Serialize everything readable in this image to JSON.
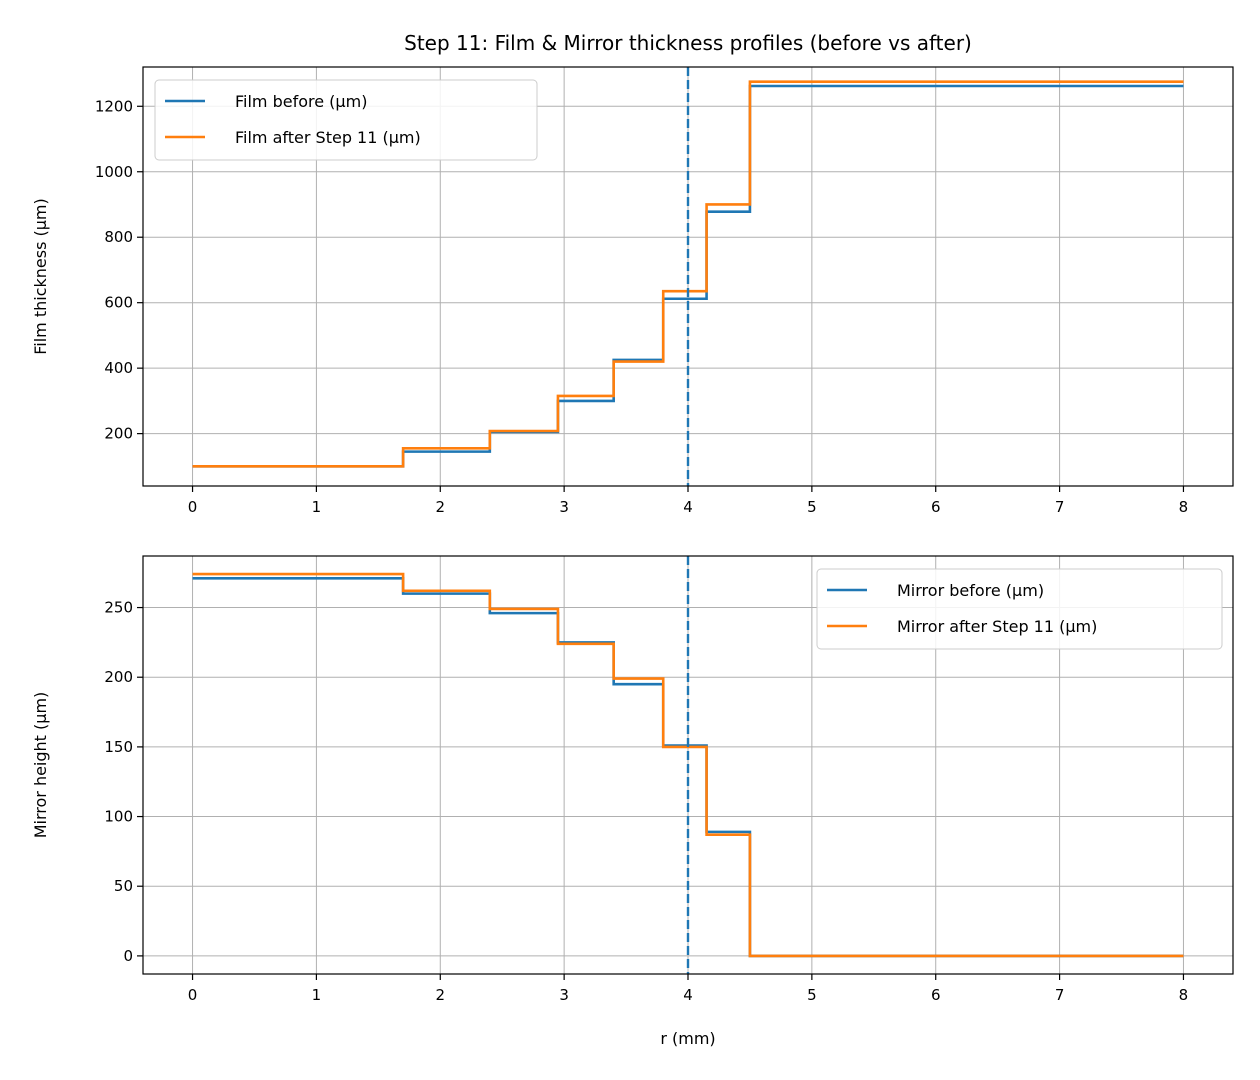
{
  "figure_title": "Step 11: Film & Mirror thickness profiles (before vs after)",
  "colors": {
    "before": "#1f77b4",
    "after": "#ff7f0e",
    "vline": "#1f77b4",
    "grid": "#b0b0b0"
  },
  "chart_data": [
    {
      "type": "line",
      "drawstyle": "steps",
      "title": "Step 11: Film & Mirror thickness profiles (before vs after)",
      "xlabel": "",
      "ylabel": "Film thickness (µm)",
      "xlim": [
        -0.4,
        8.4
      ],
      "ylim": [
        40,
        1320
      ],
      "xticks": [
        0,
        1,
        2,
        3,
        4,
        5,
        6,
        7,
        8
      ],
      "yticks": [
        200,
        400,
        600,
        800,
        1000,
        1200
      ],
      "grid": true,
      "legend_position": "top-left",
      "vline_x": 4,
      "series": [
        {
          "name": "Film before (µm)",
          "color": "#1f77b4",
          "x": [
            0,
            1.7,
            1.7,
            2.4,
            2.4,
            2.95,
            2.95,
            3.4,
            3.4,
            3.8,
            3.8,
            4.15,
            4.15,
            4.5,
            4.5,
            8
          ],
          "y": [
            100,
            100,
            145,
            145,
            205,
            205,
            300,
            300,
            425,
            425,
            612,
            612,
            878,
            878,
            1262,
            1262
          ]
        },
        {
          "name": "Film after Step 11 (µm)",
          "color": "#ff7f0e",
          "x": [
            0,
            1.7,
            1.7,
            2.4,
            2.4,
            2.95,
            2.95,
            3.4,
            3.4,
            3.8,
            3.8,
            4.15,
            4.15,
            4.5,
            4.5,
            8
          ],
          "y": [
            100,
            100,
            155,
            155,
            208,
            208,
            315,
            315,
            420,
            420,
            635,
            635,
            900,
            900,
            1275,
            1275
          ]
        }
      ]
    },
    {
      "type": "line",
      "drawstyle": "steps",
      "title": "",
      "xlabel": "r (mm)",
      "ylabel": "Mirror height (µm)",
      "xlim": [
        -0.4,
        8.4
      ],
      "ylim": [
        -13,
        287
      ],
      "xticks": [
        0,
        1,
        2,
        3,
        4,
        5,
        6,
        7,
        8
      ],
      "yticks": [
        0,
        50,
        100,
        150,
        200,
        250
      ],
      "grid": true,
      "legend_position": "top-right",
      "vline_x": 4,
      "series": [
        {
          "name": "Mirror before (µm)",
          "color": "#1f77b4",
          "x": [
            0,
            1.7,
            1.7,
            2.4,
            2.4,
            2.95,
            2.95,
            3.4,
            3.4,
            3.8,
            3.8,
            4.15,
            4.15,
            4.5,
            4.5,
            8
          ],
          "y": [
            271,
            271,
            260,
            260,
            246,
            246,
            225,
            225,
            195,
            195,
            151,
            151,
            89,
            89,
            0,
            0
          ]
        },
        {
          "name": "Mirror after Step 11 (µm)",
          "color": "#ff7f0e",
          "x": [
            0,
            1.7,
            1.7,
            2.4,
            2.4,
            2.95,
            2.95,
            3.4,
            3.4,
            3.8,
            3.8,
            4.15,
            4.15,
            4.5,
            4.5,
            8
          ],
          "y": [
            274,
            274,
            262,
            262,
            249,
            249,
            224,
            224,
            199,
            199,
            150,
            150,
            87,
            87,
            0,
            0
          ]
        }
      ]
    }
  ]
}
